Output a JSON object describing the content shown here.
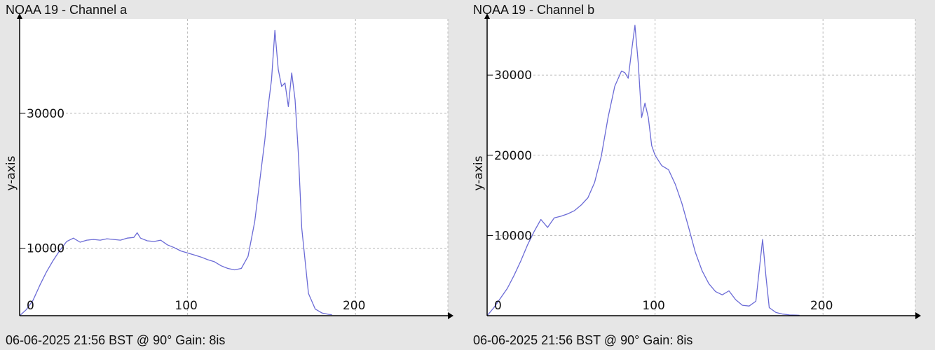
{
  "charts": [
    {
      "title": "NOAA 19 - Channel a",
      "footer": "06-06-2025 21:56 BST @ 90° Gain: 8is",
      "chart_data": {
        "type": "line",
        "title": "NOAA 19 - Channel a",
        "xlabel": "",
        "ylabel": "y-axis",
        "xlim": [
          0,
          255
        ],
        "ylim": [
          0,
          44000
        ],
        "x_ticks": [
          0,
          100,
          200
        ],
        "y_ticks": [
          10000,
          30000
        ],
        "x_tick_labels": [
          "0",
          "100",
          "200"
        ],
        "y_tick_labels": [
          "10000",
          "30000"
        ],
        "grid": true,
        "line_color": "#6b6bd6",
        "series": [
          {
            "x": [
              0,
              4,
              8,
              12,
              16,
              20,
              24,
              28,
              32,
              36,
              40,
              44,
              48,
              52,
              56,
              60,
              64,
              68,
              70,
              72,
              76,
              80,
              84,
              88,
              92,
              96,
              100,
              104,
              108,
              112,
              116,
              120,
              124,
              128,
              132,
              136,
              140,
              144,
              146,
              148,
              150,
              152,
              154,
              156,
              158,
              160,
              162,
              164,
              166,
              168,
              172,
              176,
              180,
              184,
              186
            ],
            "y": [
              0,
              900,
              2300,
              4500,
              6500,
              8200,
              9700,
              11000,
              11500,
              10900,
              11200,
              11300,
              11200,
              11400,
              11300,
              11200,
              11500,
              11600,
              12300,
              11500,
              11100,
              11000,
              11200,
              10500,
              10100,
              9600,
              9300,
              9000,
              8700,
              8300,
              8000,
              7400,
              7000,
              6800,
              7000,
              8800,
              14000,
              22000,
              26000,
              31000,
              35000,
              42300,
              36500,
              34000,
              34500,
              31000,
              36000,
              32000,
              24000,
              13000,
              3300,
              1000,
              400,
              200,
              150
            ]
          }
        ]
      }
    },
    {
      "title": "NOAA 19 - Channel b",
      "footer": "06-06-2025 21:56 BST @ 90° Gain: 8is",
      "chart_data": {
        "type": "line",
        "title": "NOAA 19 - Channel b",
        "xlabel": "",
        "ylabel": "y-axis",
        "xlim": [
          0,
          255
        ],
        "ylim": [
          0,
          37000
        ],
        "x_ticks": [
          0,
          100,
          200
        ],
        "y_ticks": [
          10000,
          20000,
          30000
        ],
        "x_tick_labels": [
          "0",
          "100",
          "200"
        ],
        "y_tick_labels": [
          "10000",
          "20000",
          "30000"
        ],
        "grid": true,
        "line_color": "#6b6bd6",
        "series": [
          {
            "x": [
              0,
              4,
              8,
              12,
              16,
              20,
              24,
              28,
              32,
              36,
              40,
              44,
              48,
              52,
              56,
              60,
              64,
              68,
              72,
              76,
              80,
              82,
              84,
              86,
              88,
              90,
              92,
              94,
              96,
              98,
              100,
              104,
              108,
              112,
              116,
              120,
              124,
              128,
              132,
              136,
              140,
              144,
              148,
              152,
              156,
              160,
              164,
              166,
              168,
              172,
              176,
              180,
              184,
              186
            ],
            "y": [
              0,
              1000,
              2200,
              3400,
              5000,
              6800,
              8800,
              10500,
              12000,
              11000,
              12200,
              12400,
              12700,
              13100,
              13800,
              14700,
              16600,
              19900,
              24700,
              28600,
              30500,
              30300,
              29600,
              33000,
              36200,
              31500,
              24700,
              26500,
              24700,
              21200,
              20000,
              18700,
              18200,
              16400,
              14000,
              11000,
              7900,
              5600,
              4000,
              3000,
              2600,
              3100,
              2000,
              1300,
              1200,
              1800,
              9500,
              5000,
              1000,
              400,
              200,
              100,
              80,
              50
            ]
          }
        ]
      }
    }
  ]
}
